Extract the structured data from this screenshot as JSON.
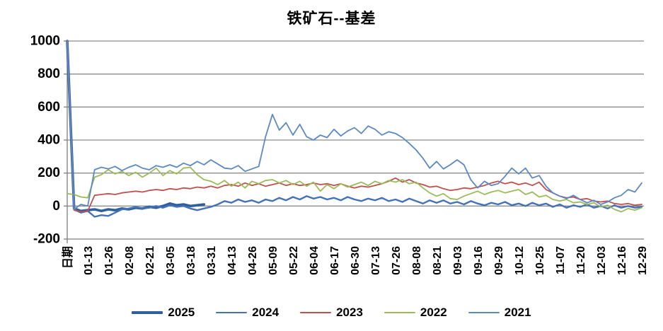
{
  "chart_data": {
    "type": "line",
    "title": "铁矿石--基差",
    "categories": [
      "日期",
      "01-13",
      "01-26",
      "02-08",
      "02-21",
      "03-05",
      "03-18",
      "03-31",
      "04-13",
      "04-26",
      "05-09",
      "05-22",
      "06-04",
      "06-17",
      "06-30",
      "07-13",
      "07-26",
      "08-08",
      "08-21",
      "09-03",
      "09-16",
      "09-29",
      "10-12",
      "10-25",
      "11-07",
      "11-20",
      "12-03",
      "12-16",
      "12-29"
    ],
    "samples_per_category": 3,
    "ylim": [
      -200,
      1000
    ],
    "y_tick_step": 200,
    "y_tick_labels": [
      "1000",
      "800",
      "600",
      "400",
      "200",
      "0",
      "-200"
    ],
    "grid": "horizontal",
    "x_label_rotation": -90,
    "legend_position": "bottom",
    "series": [
      {
        "name": "2025",
        "color": "#2F5F9E",
        "width": 3.6,
        "values": [
          1000,
          -15,
          -30,
          -25,
          -20,
          -30,
          -20,
          -25,
          -15,
          -20,
          -10,
          -15,
          -5,
          -10,
          0,
          15,
          5,
          10,
          0,
          5,
          10
        ]
      },
      {
        "name": "2024",
        "color": "#4372B8",
        "width": 2.4,
        "values": [
          1000,
          -20,
          -40,
          -30,
          -65,
          -55,
          -60,
          -40,
          -20,
          -15,
          -5,
          -15,
          -10,
          0,
          -10,
          5,
          -5,
          0,
          -15,
          -25,
          -15,
          -5,
          10,
          30,
          20,
          40,
          25,
          35,
          20,
          40,
          30,
          50,
          35,
          55,
          40,
          60,
          45,
          55,
          40,
          50,
          35,
          55,
          40,
          30,
          45,
          35,
          50,
          30,
          40,
          25,
          45,
          30,
          15,
          35,
          20,
          35,
          15,
          25,
          10,
          30,
          15,
          5,
          20,
          10,
          25,
          5,
          15,
          0,
          20,
          5,
          15,
          -5,
          10,
          -10,
          5,
          -5,
          10,
          -10,
          0,
          -15,
          5,
          -10,
          0,
          -10,
          -5
        ]
      },
      {
        "name": "2023",
        "color": "#C0504D",
        "width": 1.8,
        "values": [
          1000,
          -25,
          -35,
          -30,
          65,
          70,
          75,
          70,
          80,
          85,
          90,
          85,
          95,
          100,
          95,
          105,
          100,
          110,
          105,
          115,
          110,
          120,
          110,
          125,
          130,
          120,
          140,
          125,
          135,
          120,
          130,
          140,
          125,
          135,
          125,
          130,
          140,
          130,
          135,
          125,
          135,
          120,
          110,
          120,
          115,
          125,
          135,
          150,
          170,
          145,
          160,
          140,
          130,
          115,
          120,
          105,
          95,
          100,
          110,
          105,
          115,
          125,
          140,
          150,
          135,
          145,
          130,
          140,
          125,
          145,
          100,
          80,
          60,
          50,
          55,
          40,
          45,
          30,
          25,
          30,
          15,
          10,
          15,
          5,
          10
        ]
      },
      {
        "name": "2022",
        "color": "#9BBB59",
        "width": 1.8,
        "values": [
          75,
          70,
          55,
          50,
          175,
          190,
          220,
          195,
          210,
          185,
          205,
          175,
          200,
          230,
          185,
          215,
          195,
          230,
          235,
          190,
          160,
          150,
          130,
          155,
          120,
          145,
          110,
          150,
          135,
          155,
          160,
          140,
          155,
          130,
          150,
          120,
          145,
          90,
          130,
          105,
          135,
          115,
          130,
          145,
          125,
          150,
          135,
          155,
          145,
          160,
          135,
          145,
          110,
          80,
          60,
          75,
          45,
          40,
          60,
          75,
          90,
          70,
          85,
          95,
          80,
          90,
          100,
          70,
          85,
          55,
          65,
          40,
          30,
          40,
          20,
          25,
          10,
          20,
          -5,
          5,
          -20,
          -35,
          -15,
          -25,
          -10
        ]
      },
      {
        "name": "2021",
        "color": "#5B89C4",
        "width": 1.8,
        "values": [
          1000,
          -20,
          10,
          0,
          220,
          235,
          225,
          240,
          215,
          235,
          250,
          230,
          220,
          245,
          235,
          250,
          235,
          260,
          245,
          270,
          250,
          280,
          255,
          230,
          225,
          245,
          210,
          225,
          240,
          420,
          555,
          460,
          505,
          430,
          495,
          420,
          400,
          430,
          415,
          465,
          425,
          455,
          475,
          440,
          485,
          465,
          430,
          450,
          440,
          415,
          380,
          340,
          290,
          230,
          270,
          225,
          250,
          280,
          250,
          160,
          110,
          150,
          125,
          135,
          180,
          230,
          195,
          230,
          170,
          185,
          120,
          80,
          60,
          45,
          65,
          40,
          20,
          35,
          10,
          25,
          50,
          65,
          100,
          85,
          140
        ]
      }
    ]
  },
  "colors": {
    "gridline": "#8C8C8C",
    "axis": "#7F7F7F",
    "background": "#FFFFFF",
    "text": "#000000"
  }
}
